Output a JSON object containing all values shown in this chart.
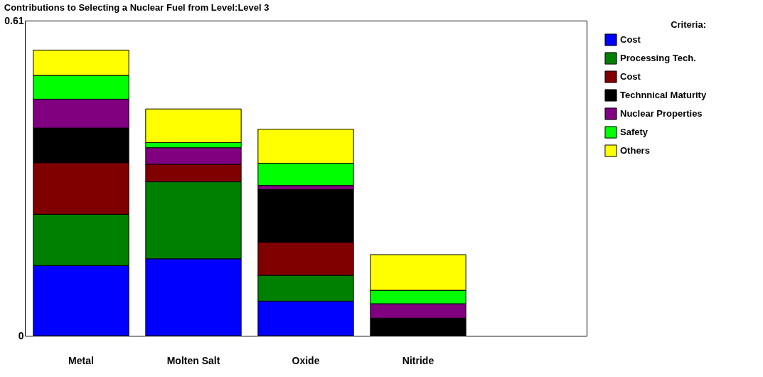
{
  "chart_data": {
    "type": "bar",
    "title": "Contributions to Selecting a Nuclear Fuel from Level:Level 3",
    "categories": [
      "Metal",
      "Molten Salt",
      "Oxide",
      "Nitride"
    ],
    "stacked": true,
    "ylim": [
      0,
      0.61
    ],
    "yticks": [
      0,
      0.61
    ],
    "legend": "top right",
    "legend_title": "Criteria:",
    "series": [
      {
        "name": "Cost",
        "color": "#0000ff",
        "values": [
          0.136,
          0.149,
          0.067,
          null
        ]
      },
      {
        "name": "Processing Tech.",
        "color": "#008000",
        "values": [
          0.099,
          0.149,
          0.05,
          null
        ]
      },
      {
        "name": "Cost",
        "color": "#800000",
        "values": [
          0.1,
          0.034,
          0.064,
          null
        ]
      },
      {
        "name": "Technnical Maturity",
        "color": "#000000",
        "values": [
          0.067,
          null,
          0.102,
          0.034
        ]
      },
      {
        "name": "Nuclear Properties",
        "color": "#800080",
        "values": [
          0.056,
          0.032,
          0.008,
          0.028
        ]
      },
      {
        "name": "Safety",
        "color": "#00ff00",
        "values": [
          0.046,
          0.01,
          0.043,
          0.026
        ]
      },
      {
        "name": "Others",
        "color": "#ffff00",
        "values": [
          0.049,
          0.065,
          0.066,
          0.069
        ]
      }
    ]
  }
}
